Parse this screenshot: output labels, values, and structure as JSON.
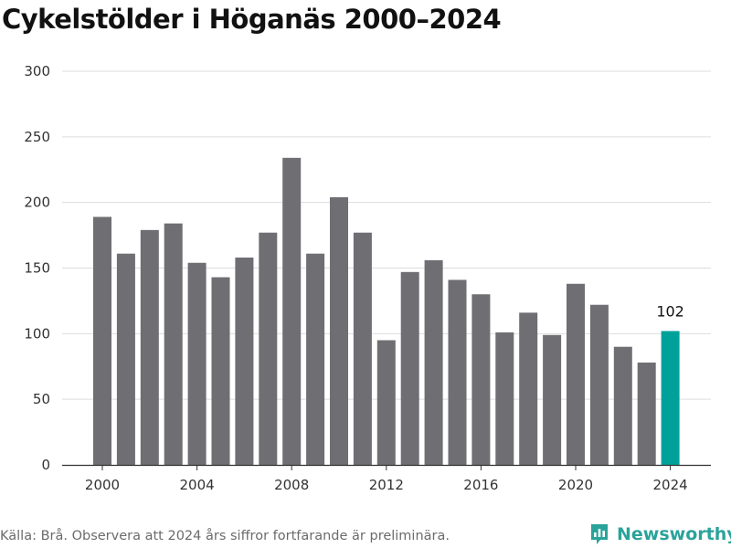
{
  "title": "Cykelstölder i Höganäs 2000–2024",
  "source": "Källa: Brå. Observera att 2024 års siffror fortfarande är preliminära.",
  "brand": {
    "name": "Newsworthy",
    "icon": "newsworthy-logo-icon",
    "color": "#2aa39a"
  },
  "colors": {
    "bar": "#6e6e73",
    "highlight": "#00a19a",
    "grid": "#dddddd",
    "axis": "#333333"
  },
  "chart_data": {
    "type": "bar",
    "title": "Cykelstölder i Höganäs 2000–2024",
    "xlabel": "",
    "ylabel": "",
    "ylim": [
      0,
      300
    ],
    "yticks": [
      0,
      50,
      100,
      150,
      200,
      250,
      300
    ],
    "xticks": [
      2000,
      2004,
      2008,
      2012,
      2016,
      2020,
      2024
    ],
    "grid": true,
    "categories": [
      2000,
      2001,
      2002,
      2003,
      2004,
      2005,
      2006,
      2007,
      2008,
      2009,
      2010,
      2011,
      2012,
      2013,
      2014,
      2015,
      2016,
      2017,
      2018,
      2019,
      2020,
      2021,
      2022,
      2023,
      2024
    ],
    "values": [
      189,
      161,
      179,
      184,
      154,
      143,
      158,
      177,
      234,
      161,
      204,
      177,
      95,
      147,
      156,
      141,
      130,
      101,
      116,
      99,
      138,
      122,
      90,
      78,
      102
    ],
    "highlight": {
      "category": 2024,
      "label": "102"
    }
  }
}
